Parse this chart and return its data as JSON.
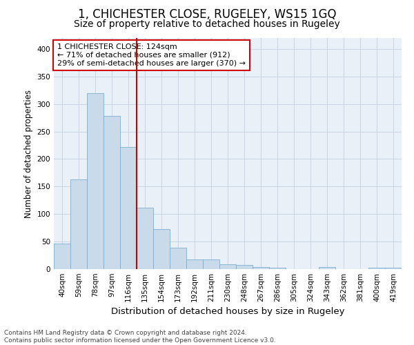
{
  "title": "1, CHICHESTER CLOSE, RUGELEY, WS15 1GQ",
  "subtitle": "Size of property relative to detached houses in Rugeley",
  "xlabel": "Distribution of detached houses by size in Rugeley",
  "ylabel": "Number of detached properties",
  "categories": [
    "40sqm",
    "59sqm",
    "78sqm",
    "97sqm",
    "116sqm",
    "135sqm",
    "154sqm",
    "173sqm",
    "192sqm",
    "211sqm",
    "230sqm",
    "248sqm",
    "267sqm",
    "286sqm",
    "305sqm",
    "324sqm",
    "343sqm",
    "362sqm",
    "381sqm",
    "400sqm",
    "419sqm"
  ],
  "values": [
    47,
    163,
    320,
    278,
    222,
    112,
    73,
    39,
    17,
    17,
    9,
    7,
    4,
    3,
    0,
    0,
    4,
    0,
    0,
    2,
    2
  ],
  "bar_color": "#c9daea",
  "bar_edge_color": "#7bafd4",
  "grid_color": "#c8d4e4",
  "bg_color": "#eaf0f8",
  "vline_color": "#cc0000",
  "vline_x_index": 4,
  "annotation_text": "1 CHICHESTER CLOSE: 124sqm\n← 71% of detached houses are smaller (912)\n29% of semi-detached houses are larger (370) →",
  "annotation_box_color": "#ffffff",
  "annotation_box_edge": "#cc0000",
  "ylim": [
    0,
    420
  ],
  "yticks": [
    0,
    50,
    100,
    150,
    200,
    250,
    300,
    350,
    400
  ],
  "footer": "Contains HM Land Registry data © Crown copyright and database right 2024.\nContains public sector information licensed under the Open Government Licence v3.0.",
  "title_fontsize": 12,
  "subtitle_fontsize": 10,
  "xlabel_fontsize": 9.5,
  "ylabel_fontsize": 8.5,
  "tick_fontsize": 7.5,
  "annot_fontsize": 8,
  "footer_fontsize": 6.5
}
